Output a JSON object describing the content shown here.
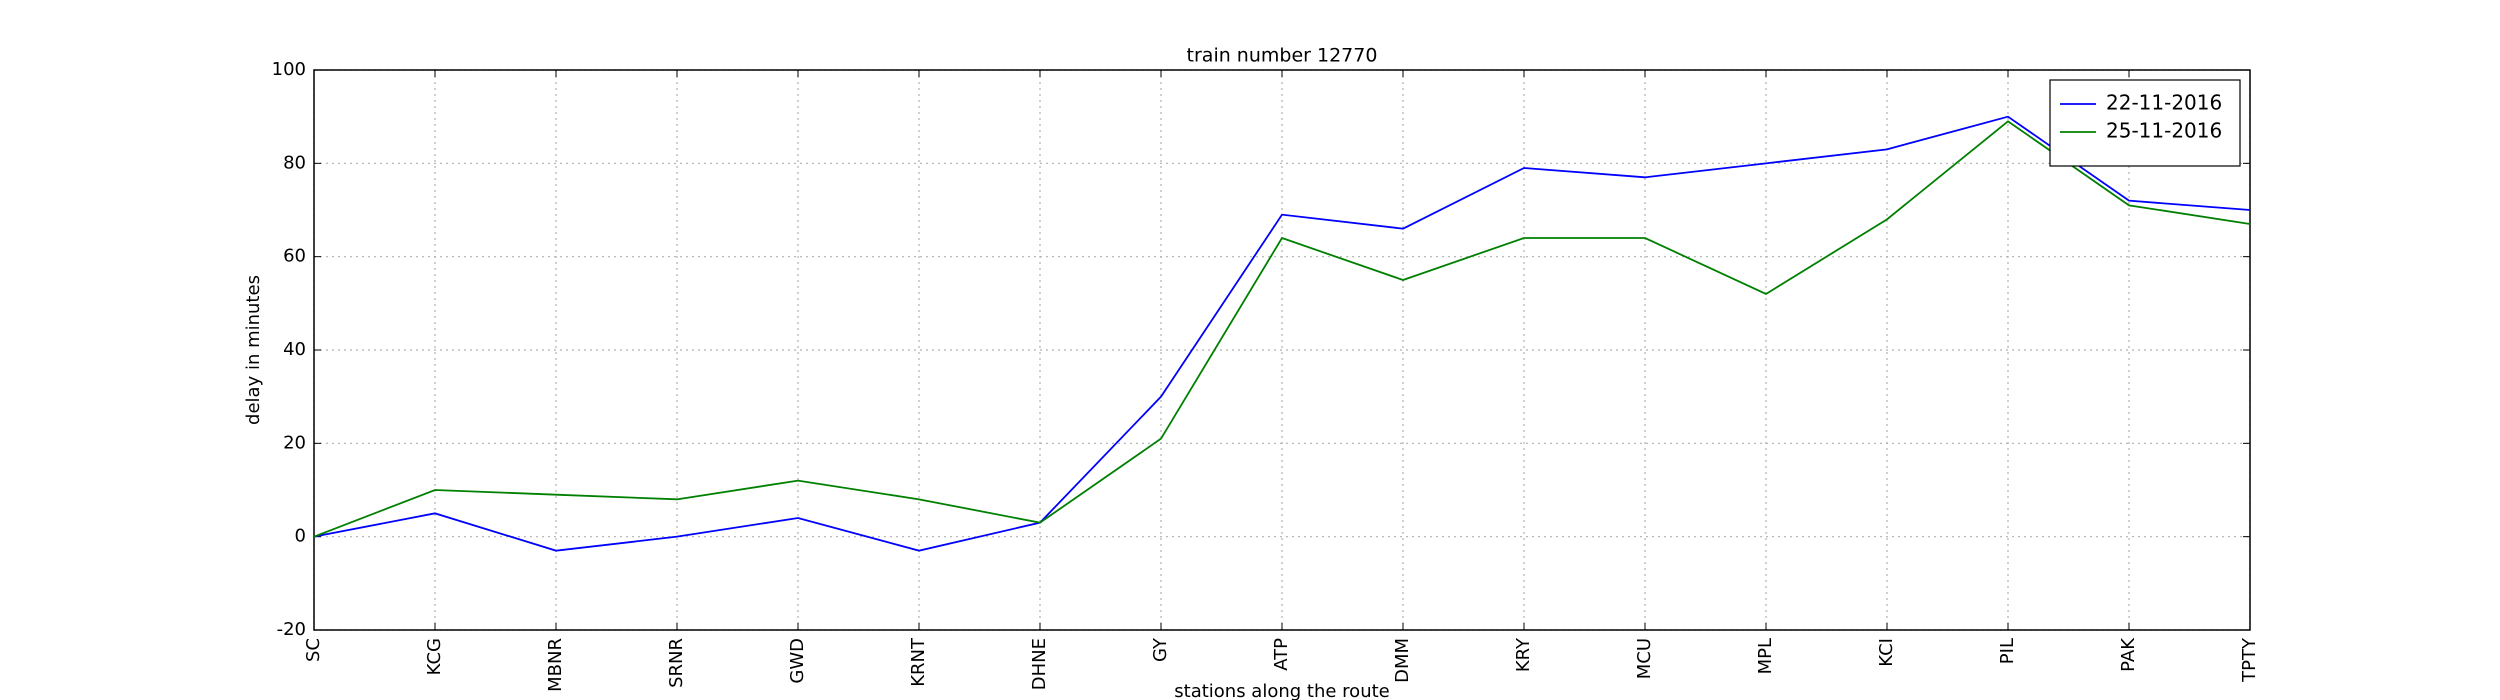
{
  "chart_data": {
    "type": "line",
    "title": "train number 12770",
    "x_label": "stations along the route",
    "y_label": "delay in minutes",
    "categories": [
      "SC",
      "KCG",
      "MBNR",
      "SRNR",
      "GWD",
      "KRNT",
      "DHNE",
      "GY",
      "ATP",
      "DMM",
      "KRY",
      "MCU",
      "MPL",
      "KCI",
      "PIL",
      "PAK",
      "TPTY"
    ],
    "series": [
      {
        "name": "22-11-2016",
        "color": "#0000ff",
        "values": [
          0,
          5,
          -3,
          0,
          4,
          -3,
          3,
          30,
          69,
          66,
          79,
          77,
          80,
          83,
          90,
          72,
          70
        ]
      },
      {
        "name": "25-11-2016",
        "color": "#008000",
        "values": [
          0,
          10,
          9,
          8,
          12,
          8,
          3,
          21,
          64,
          55,
          64,
          64,
          52,
          68,
          89,
          71,
          67
        ]
      }
    ],
    "ylim": [
      -20,
      100
    ],
    "yticks": [
      -20,
      0,
      20,
      40,
      60,
      80,
      100
    ],
    "grid": true,
    "legend": "upper right"
  }
}
